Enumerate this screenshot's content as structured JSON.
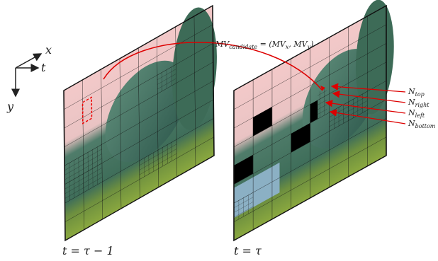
{
  "axes": {
    "x": "x",
    "t": "t",
    "y": "y"
  },
  "motion_vector": {
    "lhs": "MV",
    "lhs_sub": "candidate",
    "eq": " = (",
    "mvx": "MV",
    "mvx_sub": "x",
    "sep": ", ",
    "mvy": "MV",
    "mvy_sub": "y",
    "close": ")"
  },
  "neighbors": [
    {
      "symbol": "N",
      "subscript": "top"
    },
    {
      "symbol": "N",
      "subscript": "right"
    },
    {
      "symbol": "N",
      "subscript": "left"
    },
    {
      "symbol": "N",
      "subscript": "bottom"
    }
  ],
  "frames": [
    {
      "label": "t = τ − 1"
    },
    {
      "label": "t = τ"
    }
  ]
}
